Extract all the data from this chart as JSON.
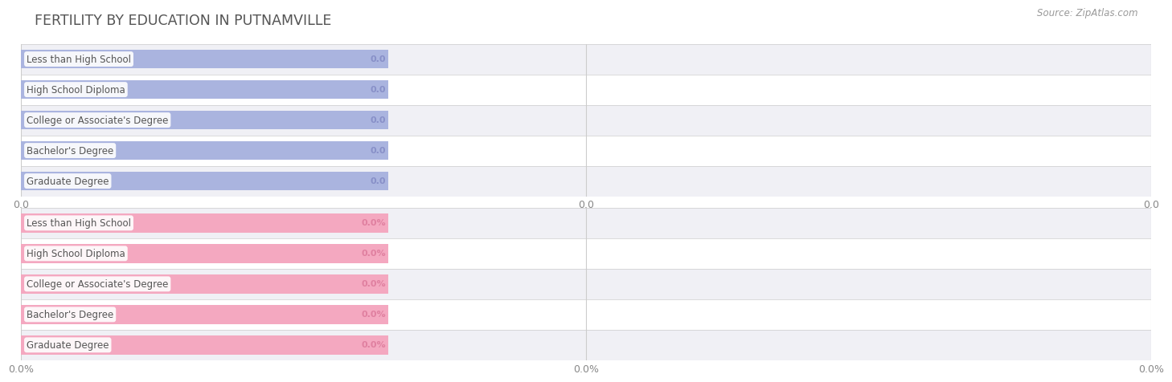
{
  "title": "FERTILITY BY EDUCATION IN PUTNAMVILLE",
  "source": "Source: ZipAtlas.com",
  "categories": [
    "Less than High School",
    "High School Diploma",
    "College or Associate's Degree",
    "Bachelor's Degree",
    "Graduate Degree"
  ],
  "values_top": [
    0.0,
    0.0,
    0.0,
    0.0,
    0.0
  ],
  "values_bottom": [
    0.0,
    0.0,
    0.0,
    0.0,
    0.0
  ],
  "labels_top": [
    "0.0",
    "0.0",
    "0.0",
    "0.0",
    "0.0"
  ],
  "labels_bottom": [
    "0.0%",
    "0.0%",
    "0.0%",
    "0.0%",
    "0.0%"
  ],
  "bar_color_top": "#aab4df",
  "bar_bg_color_top": "#dde0f0",
  "bar_color_bottom": "#f4a8c0",
  "bar_bg_color_bottom": "#fad8e4",
  "label_color_top": "#9098c8",
  "label_color_bottom": "#e080a0",
  "tick_label_top": [
    "0.0",
    "0.0",
    "0.0"
  ],
  "tick_label_bottom": [
    "0.0%",
    "0.0%",
    "0.0%"
  ],
  "bg_color": "#ffffff",
  "row_bg_even": "#f0f0f5",
  "row_bg_odd": "#ffffff",
  "title_color": "#555555",
  "source_color": "#999999",
  "cat_label_color": "#555555",
  "val_label_color_top": "#8890c8",
  "val_label_color_bottom": "#e080a0",
  "figsize": [
    14.06,
    4.75
  ]
}
